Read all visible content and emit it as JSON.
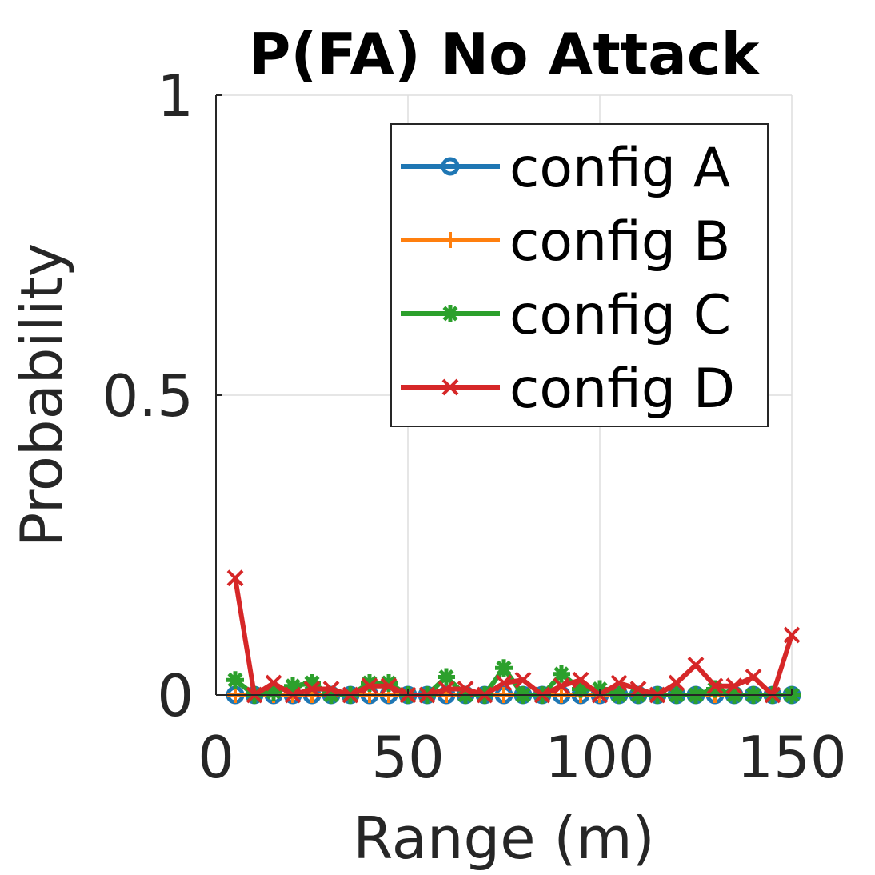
{
  "chart_data": {
    "type": "line",
    "title": "P(FA) No Attack",
    "xlabel": "Range (m)",
    "ylabel": "Probability",
    "xlim": [
      0,
      150
    ],
    "ylim": [
      0,
      1
    ],
    "xticks": [
      0,
      50,
      100,
      150
    ],
    "xtick_labels": [
      "0",
      "50",
      "100",
      "150"
    ],
    "yticks": [
      0,
      0.5,
      1
    ],
    "ytick_labels": [
      "0",
      "0.5",
      "1"
    ],
    "grid": true,
    "legend_position": "top-right",
    "x": [
      5,
      10,
      15,
      20,
      25,
      30,
      35,
      40,
      45,
      50,
      55,
      60,
      65,
      70,
      75,
      80,
      85,
      90,
      95,
      100,
      105,
      110,
      115,
      120,
      125,
      130,
      135,
      140,
      145,
      150
    ],
    "series": [
      {
        "name": "config A",
        "color": "#1f77b4",
        "marker": "circle",
        "values": [
          0,
          0,
          0,
          0,
          0,
          0,
          0,
          0,
          0,
          0,
          0,
          0,
          0,
          0,
          0,
          0,
          0,
          0,
          0,
          0,
          0,
          0,
          0,
          0,
          0,
          0,
          0,
          0,
          0,
          0
        ]
      },
      {
        "name": "config B",
        "color": "#ff7f0e",
        "marker": "plus",
        "values": [
          0,
          0,
          0,
          0,
          0,
          0,
          0,
          0,
          0,
          0,
          0,
          0,
          0,
          0,
          0,
          0,
          0,
          0,
          0,
          0,
          0,
          0,
          0,
          0,
          0,
          0,
          0,
          0,
          0,
          0
        ]
      },
      {
        "name": "config C",
        "color": "#2ca02c",
        "marker": "star",
        "values": [
          0.025,
          0,
          0.005,
          0.015,
          0.02,
          0,
          0,
          0.02,
          0.02,
          0,
          0,
          0.03,
          0,
          0,
          0.045,
          0,
          0,
          0.035,
          0.01,
          0.01,
          0,
          0,
          0,
          0,
          0,
          0.01,
          0,
          0,
          0,
          0
        ]
      },
      {
        "name": "config D",
        "color": "#d62728",
        "marker": "x",
        "values": [
          0.195,
          0,
          0.02,
          0,
          0.01,
          0.01,
          0,
          0.015,
          0.015,
          0,
          0,
          0.01,
          0.01,
          0,
          0.02,
          0.025,
          0,
          0.015,
          0.025,
          0,
          0.02,
          0.01,
          0,
          0.02,
          0.05,
          0.015,
          0.015,
          0.03,
          0,
          0.1
        ]
      }
    ]
  }
}
